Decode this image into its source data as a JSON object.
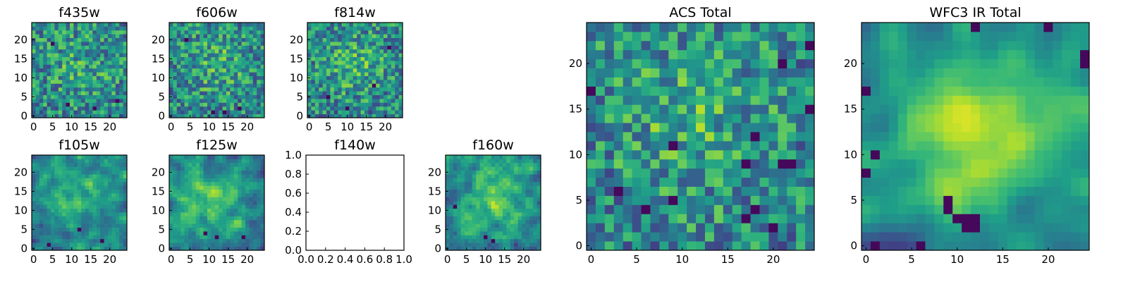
{
  "figure": {
    "colormap": "viridis",
    "tick_color": "#000000"
  },
  "chart_data": [
    {
      "id": "f435w",
      "type": "heatmap",
      "title": "f435w",
      "grid_size": 25,
      "xlim": [
        0,
        24
      ],
      "ylim": [
        0,
        24
      ],
      "xticks": [
        "0",
        "5",
        "10",
        "15",
        "20"
      ],
      "yticks": [
        "0",
        "5",
        "10",
        "15",
        "20"
      ],
      "seed": 11,
      "smooth": 0,
      "contrast": 0.35,
      "center": [
        12,
        13
      ],
      "dark_points": [
        [
          9,
          3
        ],
        [
          16,
          2
        ],
        [
          22,
          4
        ],
        [
          5,
          19
        ]
      ]
    },
    {
      "id": "f606w",
      "type": "heatmap",
      "title": "f606w",
      "grid_size": 25,
      "xlim": [
        0,
        24
      ],
      "ylim": [
        0,
        24
      ],
      "xticks": [
        "0",
        "5",
        "10",
        "15",
        "20"
      ],
      "yticks": [
        "0",
        "5",
        "10",
        "15",
        "20"
      ],
      "seed": 23,
      "smooth": 0,
      "contrast": 0.45,
      "center": [
        12,
        14
      ],
      "dark_points": [
        [
          11,
          1
        ],
        [
          14,
          1
        ],
        [
          18,
          2
        ],
        [
          4,
          20
        ]
      ]
    },
    {
      "id": "f814w",
      "type": "heatmap",
      "title": "f814w",
      "grid_size": 25,
      "xlim": [
        0,
        24
      ],
      "ylim": [
        0,
        24
      ],
      "xticks": [
        "0",
        "5",
        "10",
        "15",
        "20"
      ],
      "yticks": [
        "0",
        "5",
        "10",
        "15",
        "20"
      ],
      "seed": 37,
      "smooth": 0,
      "contrast": 0.5,
      "center": [
        12,
        14
      ],
      "dark_points": [
        [
          5,
          5
        ],
        [
          17,
          8
        ],
        [
          10,
          2
        ],
        [
          21,
          18
        ]
      ]
    },
    {
      "id": "f105w",
      "type": "heatmap",
      "title": "f105w",
      "grid_size": 25,
      "xlim": [
        0,
        24
      ],
      "ylim": [
        0,
        24
      ],
      "xticks": [
        "0",
        "5",
        "10",
        "15",
        "20"
      ],
      "yticks": [
        "0",
        "5",
        "10",
        "15",
        "20"
      ],
      "seed": 41,
      "smooth": 1,
      "contrast": 0.7,
      "center": [
        11,
        14
      ],
      "dark_points": [
        [
          4,
          1
        ],
        [
          12,
          5
        ],
        [
          18,
          2
        ]
      ]
    },
    {
      "id": "f125w",
      "type": "heatmap",
      "title": "f125w",
      "grid_size": 25,
      "xlim": [
        0,
        24
      ],
      "ylim": [
        0,
        24
      ],
      "xticks": [
        "0",
        "5",
        "10",
        "15",
        "20"
      ],
      "yticks": [
        "0",
        "5",
        "10",
        "15",
        "20"
      ],
      "seed": 53,
      "smooth": 1,
      "contrast": 0.7,
      "center": [
        11,
        13
      ],
      "dark_points": [
        [
          9,
          4
        ],
        [
          12,
          3
        ],
        [
          19,
          3
        ]
      ]
    },
    {
      "id": "f140w",
      "type": "empty",
      "title": "f140w",
      "xlim": [
        0.0,
        1.0
      ],
      "ylim": [
        0.0,
        1.0
      ],
      "xticks": [
        "0.0",
        "0.2",
        "0.4",
        "0.6",
        "0.8",
        "1.0"
      ],
      "yticks": [
        "0.0",
        "0.2",
        "0.4",
        "0.6",
        "0.8",
        "1.0"
      ]
    },
    {
      "id": "f160w",
      "type": "heatmap",
      "title": "f160w",
      "grid_size": 25,
      "xlim": [
        0,
        24
      ],
      "ylim": [
        0,
        24
      ],
      "xticks": [
        "0",
        "5",
        "10",
        "15",
        "20"
      ],
      "yticks": [
        "0",
        "5",
        "10",
        "15",
        "20"
      ],
      "seed": 67,
      "smooth": 1,
      "contrast": 0.8,
      "center": [
        12,
        14
      ],
      "dark_points": [
        [
          10,
          3
        ],
        [
          12,
          2
        ],
        [
          2,
          11
        ]
      ]
    },
    {
      "id": "acs-total",
      "type": "heatmap",
      "title": "ACS Total",
      "grid_size": 25,
      "xlim": [
        0,
        24
      ],
      "ylim": [
        0,
        24
      ],
      "xticks": [
        "0",
        "5",
        "10",
        "15",
        "20"
      ],
      "yticks": [
        "0",
        "5",
        "10",
        "15",
        "20"
      ],
      "seed": 79,
      "smooth": 0,
      "contrast": 0.45,
      "center": [
        11,
        14
      ],
      "dark_points": [
        [
          18,
          12
        ],
        [
          9,
          11
        ],
        [
          6,
          4
        ],
        [
          9,
          5
        ],
        [
          3,
          6
        ],
        [
          17,
          9
        ],
        [
          24,
          15
        ],
        [
          0,
          17
        ],
        [
          21,
          9
        ],
        [
          22,
          9
        ],
        [
          21,
          20
        ],
        [
          24,
          22
        ],
        [
          17,
          3
        ],
        [
          20,
          2
        ],
        [
          18,
          4
        ]
      ]
    },
    {
      "id": "wfc3-ir-total",
      "type": "heatmap",
      "title": "WFC3 IR Total",
      "grid_size": 25,
      "xlim": [
        0,
        24
      ],
      "ylim": [
        0,
        24
      ],
      "xticks": [
        "0",
        "5",
        "10",
        "15",
        "20"
      ],
      "yticks": [
        "0",
        "5",
        "10",
        "15",
        "20"
      ],
      "seed": 97,
      "smooth": 2,
      "contrast": 1.1,
      "center": [
        12,
        13
      ],
      "dark_points": [
        [
          9,
          4
        ],
        [
          9,
          5
        ],
        [
          10,
          3
        ],
        [
          11,
          2
        ],
        [
          11,
          3
        ],
        [
          12,
          2
        ],
        [
          12,
          3
        ],
        [
          0,
          8
        ],
        [
          1,
          10
        ],
        [
          0,
          17
        ],
        [
          24,
          21
        ],
        [
          24,
          20
        ],
        [
          12,
          24
        ],
        [
          20,
          24
        ],
        [
          1,
          0
        ],
        [
          6,
          0
        ]
      ]
    }
  ]
}
